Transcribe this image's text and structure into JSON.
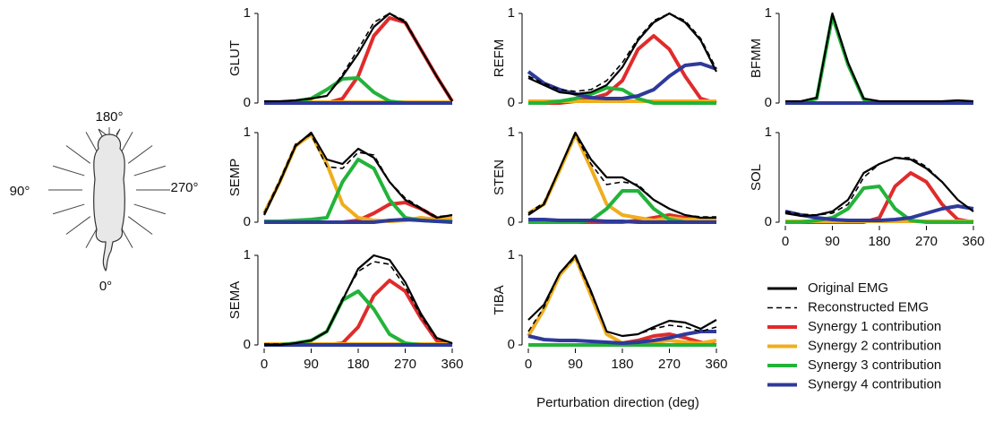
{
  "diagram": {
    "labels": {
      "top": "180°",
      "left": "90°",
      "right": "270°",
      "bottom": "0°"
    }
  },
  "xlabel": "Perturbation direction (deg)",
  "legend": [
    {
      "name": "Original EMG",
      "color": "#000000",
      "dash": false
    },
    {
      "name": "Reconstructed EMG",
      "color": "#000000",
      "dash": true
    },
    {
      "name": "Synergy 1 contribution",
      "color": "#e02b2b",
      "dash": false
    },
    {
      "name": "Synergy 2 contribution",
      "color": "#f0ad1e",
      "dash": false
    },
    {
      "name": "Synergy 3 contribution",
      "color": "#22b33a",
      "dash": false
    },
    {
      "name": "Synergy 4 contribution",
      "color": "#2e3a9a",
      "dash": false
    }
  ],
  "chart_data": [
    {
      "type": "line",
      "title": "GLUT",
      "x": [
        0,
        30,
        60,
        90,
        120,
        150,
        180,
        210,
        240,
        270,
        300,
        330,
        360
      ],
      "xlim": [
        0,
        360
      ],
      "ylim": [
        0,
        1
      ],
      "yticks": [
        0,
        1
      ],
      "series": [
        {
          "values": [
            0.02,
            0.02,
            0.03,
            0.05,
            0.08,
            0.3,
            0.55,
            0.85,
            1.0,
            0.9,
            0.6,
            0.3,
            0.02
          ]
        },
        {
          "values": [
            0.02,
            0.02,
            0.03,
            0.05,
            0.08,
            0.32,
            0.6,
            0.9,
            1.0,
            0.92,
            0.6,
            0.3,
            0.03
          ]
        },
        {
          "values": [
            0,
            0,
            0,
            0,
            0,
            0.05,
            0.3,
            0.75,
            0.95,
            0.9,
            0.6,
            0.3,
            0.02
          ]
        },
        {
          "values": [
            0.01,
            0.01,
            0.01,
            0.01,
            0.01,
            0.01,
            0.01,
            0.01,
            0.01,
            0.01,
            0.01,
            0.01,
            0.01
          ]
        },
        {
          "values": [
            0,
            0,
            0.02,
            0.05,
            0.15,
            0.27,
            0.28,
            0.12,
            0.02,
            0,
            0,
            0,
            0
          ]
        },
        {
          "values": [
            0,
            0,
            0,
            0,
            0,
            0,
            0,
            0,
            0,
            0,
            0,
            0,
            0
          ]
        }
      ]
    },
    {
      "type": "line",
      "title": "REFM",
      "x": [
        0,
        30,
        60,
        90,
        120,
        150,
        180,
        210,
        240,
        270,
        300,
        330,
        360
      ],
      "xlim": [
        0,
        360
      ],
      "ylim": [
        0,
        1
      ],
      "yticks": [
        0,
        1
      ],
      "series": [
        {
          "values": [
            0.28,
            0.2,
            0.12,
            0.1,
            0.12,
            0.2,
            0.4,
            0.7,
            0.9,
            1.0,
            0.9,
            0.7,
            0.35
          ]
        },
        {
          "values": [
            0.3,
            0.22,
            0.15,
            0.13,
            0.15,
            0.25,
            0.45,
            0.72,
            0.92,
            1.0,
            0.92,
            0.72,
            0.38
          ]
        },
        {
          "values": [
            0,
            0,
            0,
            0.02,
            0.05,
            0.1,
            0.25,
            0.6,
            0.75,
            0.6,
            0.3,
            0.05,
            0
          ]
        },
        {
          "values": [
            0.02,
            0.02,
            0.02,
            0.02,
            0.02,
            0.02,
            0.02,
            0.02,
            0.02,
            0.02,
            0.02,
            0.02,
            0.02
          ]
        },
        {
          "values": [
            0,
            0,
            0.02,
            0.05,
            0.1,
            0.17,
            0.15,
            0.05,
            0,
            0,
            0,
            0,
            0
          ]
        },
        {
          "values": [
            0.35,
            0.22,
            0.15,
            0.1,
            0.06,
            0.05,
            0.05,
            0.08,
            0.15,
            0.3,
            0.42,
            0.44,
            0.38
          ]
        }
      ]
    },
    {
      "type": "line",
      "title": "BFMM",
      "x": [
        0,
        30,
        60,
        90,
        120,
        150,
        180,
        210,
        240,
        270,
        300,
        330,
        360
      ],
      "xlim": [
        0,
        360
      ],
      "ylim": [
        0,
        1
      ],
      "yticks": [
        0,
        1
      ],
      "series": [
        {
          "values": [
            0.02,
            0.02,
            0.06,
            1.0,
            0.45,
            0.05,
            0.02,
            0.02,
            0.02,
            0.02,
            0.02,
            0.03,
            0.02
          ]
        },
        {
          "values": [
            0.02,
            0.02,
            0.06,
            0.98,
            0.45,
            0.05,
            0.02,
            0.02,
            0.02,
            0.02,
            0.02,
            0.03,
            0.02
          ]
        },
        {
          "values": [
            0,
            0,
            0,
            0,
            0,
            0,
            0,
            0,
            0,
            0,
            0,
            0,
            0
          ]
        },
        {
          "values": [
            0,
            0,
            0,
            0,
            0,
            0,
            0,
            0,
            0,
            0,
            0,
            0,
            0
          ]
        },
        {
          "values": [
            0.01,
            0.01,
            0.05,
            0.97,
            0.43,
            0.04,
            0.01,
            0.01,
            0.01,
            0.01,
            0.01,
            0.01,
            0.01
          ]
        },
        {
          "values": [
            0,
            0,
            0,
            0,
            0,
            0,
            0,
            0,
            0,
            0,
            0,
            0,
            0
          ]
        }
      ]
    },
    {
      "type": "line",
      "title": "SEMP",
      "x": [
        0,
        30,
        60,
        90,
        120,
        150,
        180,
        210,
        240,
        270,
        300,
        330,
        360
      ],
      "xlim": [
        0,
        360
      ],
      "ylim": [
        0,
        1
      ],
      "yticks": [
        0,
        1
      ],
      "series": [
        {
          "values": [
            0.08,
            0.45,
            0.85,
            1.0,
            0.7,
            0.65,
            0.82,
            0.72,
            0.45,
            0.25,
            0.15,
            0.05,
            0.08
          ]
        },
        {
          "values": [
            0.1,
            0.47,
            0.87,
            0.98,
            0.62,
            0.6,
            0.78,
            0.75,
            0.45,
            0.27,
            0.16,
            0.06,
            0.08
          ]
        },
        {
          "values": [
            0,
            0,
            0,
            0,
            0,
            0,
            0.02,
            0.1,
            0.2,
            0.22,
            0.15,
            0.05,
            0
          ]
        },
        {
          "values": [
            0.1,
            0.45,
            0.85,
            0.98,
            0.65,
            0.2,
            0.05,
            0.02,
            0.01,
            0.02,
            0.05,
            0.03,
            0.05
          ]
        },
        {
          "values": [
            0.01,
            0.01,
            0.02,
            0.03,
            0.05,
            0.45,
            0.7,
            0.6,
            0.25,
            0.05,
            0.02,
            0.01,
            0.01
          ]
        },
        {
          "values": [
            0,
            0,
            0,
            0,
            0,
            0,
            0,
            0,
            0.02,
            0.03,
            0.02,
            0.01,
            0
          ]
        }
      ]
    },
    {
      "type": "line",
      "title": "STEN",
      "x": [
        0,
        30,
        60,
        90,
        120,
        150,
        180,
        210,
        240,
        270,
        300,
        330,
        360
      ],
      "xlim": [
        0,
        360
      ],
      "ylim": [
        0,
        1
      ],
      "yticks": [
        0,
        1
      ],
      "series": [
        {
          "values": [
            0.08,
            0.2,
            0.6,
            1.0,
            0.7,
            0.5,
            0.5,
            0.4,
            0.25,
            0.15,
            0.08,
            0.05,
            0.05
          ]
        },
        {
          "values": [
            0.1,
            0.22,
            0.6,
            0.98,
            0.65,
            0.42,
            0.45,
            0.42,
            0.25,
            0.15,
            0.08,
            0.06,
            0.06
          ]
        },
        {
          "values": [
            0,
            0,
            0,
            0,
            0,
            0,
            0,
            0.02,
            0.05,
            0.08,
            0.05,
            0.02,
            0
          ]
        },
        {
          "values": [
            0.1,
            0.2,
            0.58,
            0.98,
            0.6,
            0.2,
            0.08,
            0.05,
            0.02,
            0.05,
            0.03,
            0.03,
            0.02
          ]
        },
        {
          "values": [
            0,
            0,
            0,
            0,
            0.02,
            0.15,
            0.35,
            0.35,
            0.15,
            0.03,
            0,
            0,
            0
          ]
        },
        {
          "values": [
            0.03,
            0.03,
            0.02,
            0.02,
            0.02,
            0.01,
            0.01,
            0,
            0,
            0,
            0,
            0,
            0
          ]
        }
      ]
    },
    {
      "type": "line",
      "title": "SOL",
      "x": [
        0,
        30,
        60,
        90,
        120,
        150,
        180,
        210,
        240,
        270,
        300,
        330,
        360
      ],
      "xlim": [
        0,
        360
      ],
      "ylim": [
        0,
        1
      ],
      "yticks": [
        0,
        1
      ],
      "xticks": [
        0,
        90,
        180,
        270,
        360
      ],
      "series": [
        {
          "values": [
            0.1,
            0.07,
            0.08,
            0.12,
            0.25,
            0.55,
            0.65,
            0.72,
            0.7,
            0.6,
            0.45,
            0.25,
            0.12
          ]
        },
        {
          "values": [
            0.12,
            0.09,
            0.08,
            0.1,
            0.2,
            0.5,
            0.65,
            0.72,
            0.72,
            0.62,
            0.45,
            0.25,
            0.12
          ]
        },
        {
          "values": [
            0,
            0,
            0,
            0,
            0,
            0,
            0.05,
            0.4,
            0.55,
            0.45,
            0.2,
            0.03,
            0
          ]
        },
        {
          "values": [
            0.01,
            0.01,
            0.01,
            0.01,
            0.01,
            0.01,
            0.01,
            0.01,
            0.01,
            0.01,
            0.01,
            0.01,
            0.01
          ]
        },
        {
          "values": [
            0,
            0,
            0.02,
            0.05,
            0.15,
            0.38,
            0.4,
            0.15,
            0.02,
            0,
            0,
            0,
            0
          ]
        },
        {
          "values": [
            0.12,
            0.08,
            0.05,
            0.03,
            0.02,
            0.02,
            0.02,
            0.03,
            0.05,
            0.1,
            0.15,
            0.18,
            0.15
          ]
        }
      ]
    },
    {
      "type": "line",
      "title": "SEMA",
      "x": [
        0,
        30,
        60,
        90,
        120,
        150,
        180,
        210,
        240,
        270,
        300,
        330,
        360
      ],
      "xlim": [
        0,
        360
      ],
      "ylim": [
        0,
        1
      ],
      "yticks": [
        0,
        1
      ],
      "xticks": [
        0,
        90,
        180,
        270,
        360
      ],
      "series": [
        {
          "values": [
            0,
            0,
            0.02,
            0.05,
            0.15,
            0.5,
            0.85,
            1.0,
            0.95,
            0.7,
            0.35,
            0.08,
            0.02
          ]
        },
        {
          "values": [
            0.01,
            0.01,
            0.02,
            0.05,
            0.15,
            0.52,
            0.82,
            0.93,
            0.9,
            0.65,
            0.32,
            0.07,
            0.02
          ]
        },
        {
          "values": [
            0,
            0,
            0,
            0,
            0,
            0.02,
            0.2,
            0.55,
            0.72,
            0.6,
            0.3,
            0.05,
            0
          ]
        },
        {
          "values": [
            0.01,
            0.01,
            0.01,
            0.01,
            0.01,
            0.01,
            0.01,
            0.01,
            0.01,
            0.01,
            0.01,
            0.01,
            0.01
          ]
        },
        {
          "values": [
            0,
            0,
            0.02,
            0.05,
            0.15,
            0.5,
            0.6,
            0.4,
            0.12,
            0.02,
            0,
            0,
            0
          ]
        },
        {
          "values": [
            0,
            0,
            0,
            0,
            0,
            0,
            0,
            0,
            0,
            0,
            0,
            0,
            0
          ]
        }
      ]
    },
    {
      "type": "line",
      "title": "TIBA",
      "x": [
        0,
        30,
        60,
        90,
        120,
        150,
        180,
        210,
        240,
        270,
        300,
        330,
        360
      ],
      "xlim": [
        0,
        360
      ],
      "ylim": [
        0,
        1
      ],
      "yticks": [
        0,
        1
      ],
      "xticks": [
        0,
        90,
        180,
        270,
        360
      ],
      "series": [
        {
          "values": [
            0.28,
            0.45,
            0.8,
            1.0,
            0.6,
            0.15,
            0.1,
            0.12,
            0.2,
            0.27,
            0.25,
            0.18,
            0.28
          ]
        },
        {
          "values": [
            0.15,
            0.42,
            0.8,
            0.98,
            0.58,
            0.15,
            0.1,
            0.12,
            0.18,
            0.22,
            0.2,
            0.15,
            0.2
          ]
        },
        {
          "values": [
            0,
            0,
            0,
            0,
            0,
            0,
            0.02,
            0.05,
            0.1,
            0.12,
            0.08,
            0.03,
            0
          ]
        },
        {
          "values": [
            0.1,
            0.4,
            0.78,
            0.98,
            0.55,
            0.12,
            0.02,
            0.02,
            0.03,
            0.05,
            0.03,
            0.02,
            0.05
          ]
        },
        {
          "values": [
            0,
            0,
            0,
            0,
            0,
            0,
            0,
            0,
            0,
            0,
            0,
            0,
            0
          ]
        },
        {
          "values": [
            0.1,
            0.06,
            0.05,
            0.05,
            0.04,
            0.03,
            0.02,
            0.03,
            0.05,
            0.08,
            0.12,
            0.15,
            0.15
          ]
        }
      ]
    }
  ]
}
